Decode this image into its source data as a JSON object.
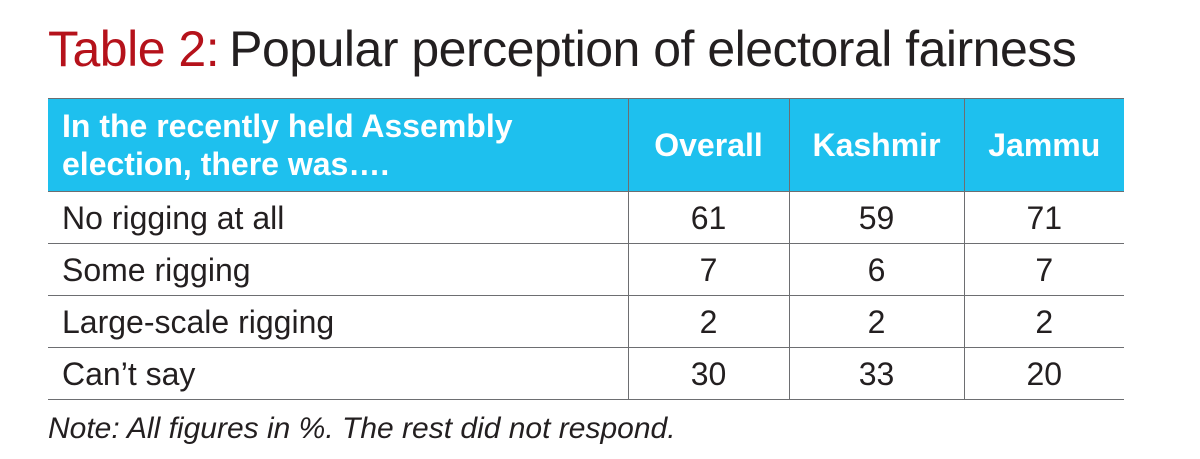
{
  "title": {
    "prefix": "Table 2:",
    "text": "Popular perception of electoral fairness"
  },
  "colors": {
    "title_prefix": "#b5121b",
    "header_background": "#1ec0ee",
    "header_text": "#ffffff",
    "border": "#6d6e71"
  },
  "chart_data": {
    "type": "table",
    "title": "Table 2: Popular perception of electoral fairness",
    "row_header": "In the recently held Assembly election, there was….",
    "columns": [
      "Overall",
      "Kashmir",
      "Jammu"
    ],
    "rows": [
      {
        "label": "No rigging at all",
        "values": [
          "61",
          "59",
          "71"
        ]
      },
      {
        "label": "Some rigging",
        "values": [
          "7",
          "6",
          "7"
        ]
      },
      {
        "label": "Large-scale rigging",
        "values": [
          "2",
          "2",
          "2"
        ]
      },
      {
        "label": "Can’t say",
        "values": [
          "30",
          "33",
          "20"
        ]
      }
    ],
    "note": "Note: All figures in %. The rest did not respond."
  }
}
